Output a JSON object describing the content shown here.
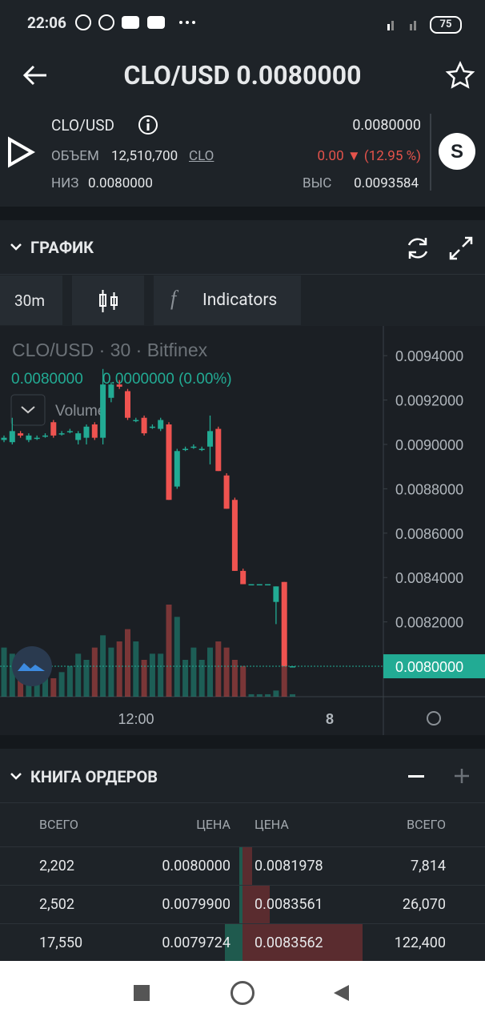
{
  "status_bar": {
    "time": "22:06",
    "battery": "75"
  },
  "header": {
    "title": "CLO/USD 0.0080000"
  },
  "summary": {
    "pair": "CLO/USD",
    "volume_label": "ОБЪЕМ",
    "volume": "12,510,700",
    "volume_unit": "CLO",
    "low_label": "НИЗ",
    "low": "0.0080000",
    "last": "0.0080000",
    "change": "0.00 ▼ (12.95 %)",
    "high_label": "ВЫС",
    "high": "0.0093584"
  },
  "chart_section": {
    "title": "ГРАФИК",
    "interval": "30m",
    "indicators": "Indicators"
  },
  "chart_data": {
    "type": "candlestick",
    "title": "CLO/USD · 30 · Bitfinex",
    "legend_price": "0.0080000",
    "legend_change": "0.0000000 (0.00%)",
    "volume_label": "Volume",
    "open": [
      0.00902,
      0.00901,
      0.00905,
      0.00902,
      0.00903,
      0.00904,
      0.0091,
      0.00905,
      0.00906,
      0.00902,
      0.00903,
      0.00909,
      0.00903,
      0.00921,
      0.00927,
      0.00924,
      0.00911,
      0.00912,
      0.00908,
      0.00907,
      0.00909,
      0.00881,
      0.00898,
      0.00899,
      0.00898,
      0.00899,
      0.00907,
      0.00886,
      0.00875,
      0.00843,
      0.00837,
      0.00837,
      0.00837,
      0.00829,
      0.00838,
      0.008
    ],
    "high": [
      0.00904,
      0.00912,
      0.00906,
      0.00905,
      0.00904,
      0.00905,
      0.00911,
      0.00906,
      0.00907,
      0.00906,
      0.00909,
      0.0091,
      0.00934,
      0.00928,
      0.00929,
      0.00925,
      0.00912,
      0.00913,
      0.00909,
      0.00912,
      0.0091,
      0.00898,
      0.00899,
      0.009,
      0.00899,
      0.00913,
      0.00908,
      0.00887,
      0.00876,
      0.00844,
      0.00837,
      0.00837,
      0.00837,
      0.00836,
      0.00838,
      0.008
    ],
    "low": [
      0.00901,
      0.009,
      0.00903,
      0.00901,
      0.00902,
      0.00903,
      0.00903,
      0.00904,
      0.00905,
      0.009,
      0.009,
      0.00902,
      0.009,
      0.00919,
      0.00925,
      0.00911,
      0.0091,
      0.00904,
      0.00907,
      0.00906,
      0.00875,
      0.0088,
      0.00897,
      0.00898,
      0.00897,
      0.00891,
      0.00888,
      0.00871,
      0.00843,
      0.00837,
      0.00837,
      0.00837,
      0.00837,
      0.00819,
      0.008,
      0.008
    ],
    "close": [
      0.00903,
      0.00906,
      0.00904,
      0.00904,
      0.00903,
      0.00904,
      0.00904,
      0.00905,
      0.00906,
      0.00905,
      0.00908,
      0.00903,
      0.00927,
      0.00927,
      0.00926,
      0.00912,
      0.00911,
      0.00905,
      0.00908,
      0.00911,
      0.00875,
      0.00897,
      0.00898,
      0.00899,
      0.00898,
      0.00906,
      0.00888,
      0.00871,
      0.00843,
      0.00837,
      0.00837,
      0.00837,
      0.00837,
      0.00836,
      0.008,
      0.008
    ],
    "volume": [
      40,
      35,
      30,
      25,
      30,
      20,
      15,
      20,
      25,
      35,
      30,
      40,
      50,
      40,
      45,
      55,
      45,
      30,
      35,
      35,
      75,
      65,
      30,
      40,
      30,
      40,
      45,
      40,
      30,
      25,
      2,
      2,
      2,
      5,
      30,
      2
    ],
    "ylim": [
      0.007863,
      0.009534
    ],
    "yticks": [
      {
        "value": 0.0094,
        "label": "0.0094000"
      },
      {
        "value": 0.0092,
        "label": "0.0092000"
      },
      {
        "value": 0.009,
        "label": "0.0090000"
      },
      {
        "value": 0.0088,
        "label": "0.0088000"
      },
      {
        "value": 0.0086,
        "label": "0.0086000"
      },
      {
        "value": 0.0084,
        "label": "0.0084000"
      },
      {
        "value": 0.0082,
        "label": "0.0082000"
      }
    ],
    "last_price": {
      "value": 0.008,
      "label": "0.0080000"
    },
    "xtick_labels": [
      "12:00",
      "8"
    ],
    "up_color": "#22ab94",
    "down_color": "#ef5350"
  },
  "order_book": {
    "title": "КНИГА ОРДЕРОВ",
    "columns": [
      "ВСЕГО",
      "ЦЕНА",
      "ЦЕНА",
      "ВСЕГО"
    ],
    "rows": [
      [
        "2,202",
        "0.0080000",
        "0.0081978",
        "7,814"
      ],
      [
        "2,502",
        "0.0079900",
        "0.0083561",
        "26,070"
      ],
      [
        "17,550",
        "0.0079724",
        "0.0083562",
        "122,400"
      ]
    ]
  }
}
